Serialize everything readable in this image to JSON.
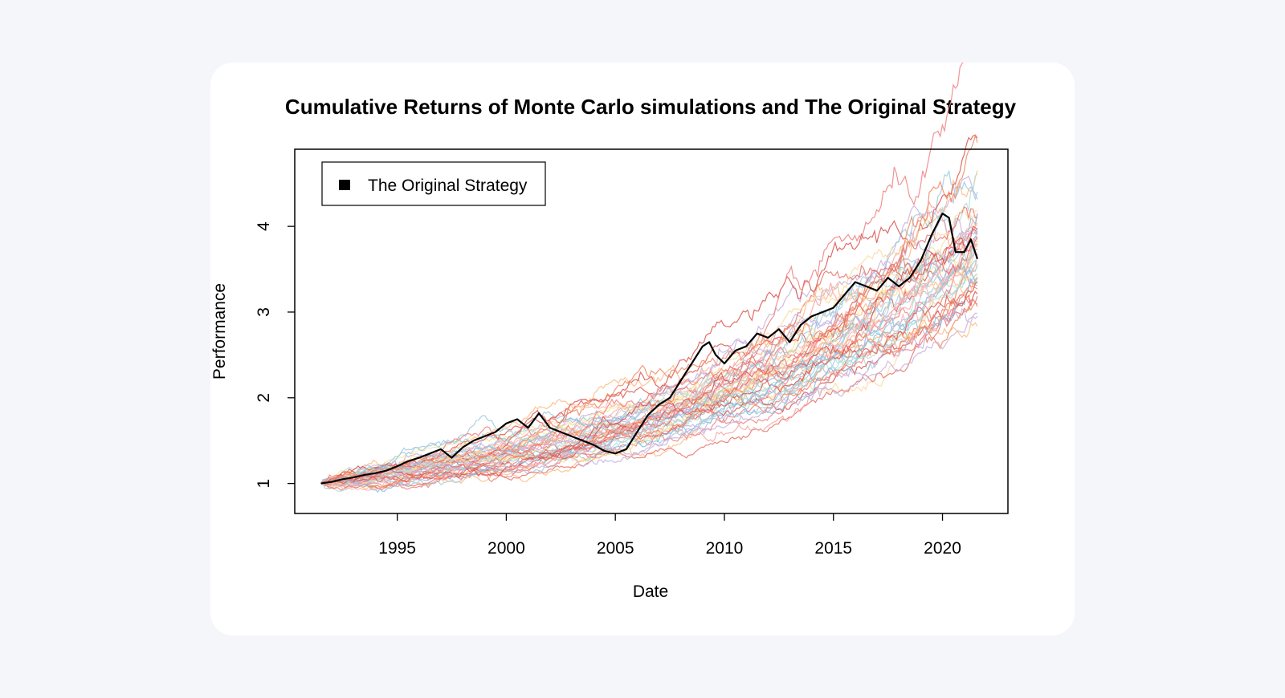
{
  "chart_data": {
    "type": "line",
    "title": "Cumulative Returns of Monte Carlo simulations and The Original Strategy",
    "xlabel": "Date",
    "ylabel": "Performance",
    "xlim": [
      1990.3,
      2023.0
    ],
    "ylim": [
      0.65,
      4.9
    ],
    "xticks": [
      "1995",
      "2000",
      "2005",
      "2010",
      "2015",
      "2020"
    ],
    "yticks": [
      "1",
      "2",
      "3",
      "4"
    ],
    "legend": {
      "position": "top-left",
      "entries": [
        "The Original Strategy"
      ]
    },
    "grid": false,
    "original_strategy": {
      "name": "The Original Strategy",
      "color": "#000000",
      "x": [
        1991.5,
        1992.0,
        1992.5,
        1993.0,
        1993.5,
        1994.0,
        1994.5,
        1995.0,
        1995.5,
        1996.0,
        1996.5,
        1997.0,
        1997.5,
        1998.0,
        1998.5,
        1999.0,
        1999.5,
        2000.0,
        2000.5,
        2001.0,
        2001.5,
        2002.0,
        2002.5,
        2003.0,
        2003.5,
        2004.0,
        2004.5,
        2005.0,
        2005.5,
        2006.0,
        2006.5,
        2007.0,
        2007.5,
        2008.0,
        2008.5,
        2009.0,
        2009.3,
        2009.6,
        2010.0,
        2010.5,
        2011.0,
        2011.5,
        2012.0,
        2012.5,
        2013.0,
        2013.5,
        2014.0,
        2014.5,
        2015.0,
        2015.5,
        2016.0,
        2016.5,
        2017.0,
        2017.5,
        2018.0,
        2018.5,
        2019.0,
        2019.5,
        2020.0,
        2020.3,
        2020.6,
        2021.0,
        2021.3,
        2021.6
      ],
      "y": [
        1.0,
        1.02,
        1.05,
        1.07,
        1.1,
        1.12,
        1.15,
        1.2,
        1.26,
        1.3,
        1.35,
        1.4,
        1.3,
        1.42,
        1.5,
        1.55,
        1.6,
        1.7,
        1.75,
        1.65,
        1.82,
        1.65,
        1.6,
        1.55,
        1.5,
        1.45,
        1.38,
        1.35,
        1.4,
        1.6,
        1.8,
        1.92,
        2.0,
        2.2,
        2.4,
        2.6,
        2.65,
        2.5,
        2.4,
        2.55,
        2.6,
        2.75,
        2.7,
        2.8,
        2.65,
        2.85,
        2.95,
        3.0,
        3.05,
        3.2,
        3.35,
        3.3,
        3.25,
        3.4,
        3.3,
        3.4,
        3.6,
        3.9,
        4.15,
        4.1,
        3.7,
        3.7,
        3.85,
        3.62
      ]
    },
    "simulations": {
      "count": 50,
      "palette": [
        "#e8736c",
        "#ef8a62",
        "#f4a6a0",
        "#fdbb84",
        "#fcd9a0",
        "#f7e39a",
        "#a6cee3",
        "#9ecae1",
        "#c3b1e1",
        "#b4dcd8",
        "#e05a50",
        "#d9534f",
        "#f08080",
        "#87bde0",
        "#cab2d6",
        "#fbb4ae"
      ]
    }
  }
}
